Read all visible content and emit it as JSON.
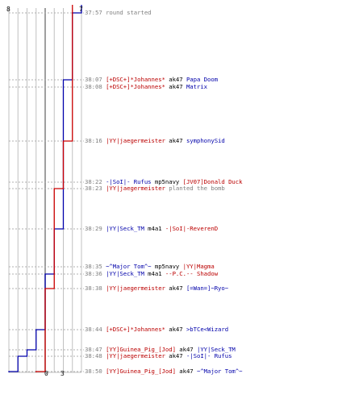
{
  "colors": {
    "team_a": "#0000aa",
    "team_b": "#cc0000",
    "grid": "#c0c0c0",
    "center_line": "#808080",
    "dashed": "#b0b0b0",
    "time": "#808080"
  },
  "scores": {
    "team_a_start": "8",
    "team_b_start": "7",
    "team_a_end": "0",
    "team_b_end": "3"
  },
  "chart_data": {
    "type": "line",
    "x_axis": "players alive",
    "series": [
      {
        "team": "team_a",
        "color": "#0000aa",
        "steps": [
          8,
          7,
          6,
          6,
          6,
          6,
          6,
          5,
          5,
          4,
          4,
          3,
          2,
          1,
          0
        ]
      },
      {
        "team": "team_b",
        "color": "#cc0000",
        "steps": [
          7,
          7,
          7,
          7,
          6,
          6,
          5,
          5,
          5,
          5,
          4,
          4,
          4,
          4,
          3
        ]
      }
    ]
  },
  "events": [
    {
      "time": "37:57",
      "parts": [
        {
          "text": "round started",
          "c": "gray"
        }
      ]
    },
    {
      "time": "38:07",
      "parts": [
        {
          "text": "[+DSC+]*Johannes*",
          "c": "red"
        },
        {
          "text": " ak47 ",
          "c": "black"
        },
        {
          "text": "Papa Doom",
          "c": "blue"
        }
      ]
    },
    {
      "time": "38:08",
      "parts": [
        {
          "text": "[+DSC+]*Johannes*",
          "c": "red"
        },
        {
          "text": " ak47 ",
          "c": "black"
        },
        {
          "text": "Matrix",
          "c": "blue"
        }
      ]
    },
    {
      "time": "38:16",
      "parts": [
        {
          "text": "|YY|jaegermeister",
          "c": "red"
        },
        {
          "text": " ak47 ",
          "c": "black"
        },
        {
          "text": "symphonySid",
          "c": "blue"
        }
      ]
    },
    {
      "time": "38:22",
      "parts": [
        {
          "text": "-|SoI|- Rufus",
          "c": "blue"
        },
        {
          "text": " mp5navy ",
          "c": "black"
        },
        {
          "text": "[JV07]Donald Duck",
          "c": "red"
        }
      ]
    },
    {
      "time": "38:23",
      "parts": [
        {
          "text": "|YY|jaegermeister",
          "c": "red"
        },
        {
          "text": " planted the bomb",
          "c": "gray"
        }
      ]
    },
    {
      "time": "38:29",
      "parts": [
        {
          "text": "|YY|Seck_TM",
          "c": "blue"
        },
        {
          "text": " m4a1 ",
          "c": "black"
        },
        {
          "text": "-|SoI|-ReverenD",
          "c": "red"
        }
      ]
    },
    {
      "time": "38:35",
      "parts": [
        {
          "text": "~^Major Tom^~",
          "c": "blue"
        },
        {
          "text": " mp5navy ",
          "c": "black"
        },
        {
          "text": "|YY|Magma",
          "c": "red"
        }
      ]
    },
    {
      "time": "38:36",
      "parts": [
        {
          "text": "|YY|Seck_TM",
          "c": "blue"
        },
        {
          "text": " m4a1 ",
          "c": "black"
        },
        {
          "text": "--P.C.-- Shadow",
          "c": "red"
        }
      ]
    },
    {
      "time": "38:38",
      "parts": [
        {
          "text": "|YY|jaegermeister",
          "c": "red"
        },
        {
          "text": " ak47 ",
          "c": "black"
        },
        {
          "text": "[=Wan=]~Ryo~",
          "c": "blue"
        }
      ]
    },
    {
      "time": "38:44",
      "parts": [
        {
          "text": "[+DSC+]*Johannes*",
          "c": "red"
        },
        {
          "text": " ak47 ",
          "c": "black"
        },
        {
          "text": ">bTCe<Wizard",
          "c": "blue"
        }
      ]
    },
    {
      "time": "38:47",
      "parts": [
        {
          "text": "[YY]Guinea_Pig_[Jod]",
          "c": "red"
        },
        {
          "text": " ak47 ",
          "c": "black"
        },
        {
          "text": "|YY|Seck_TM",
          "c": "blue"
        }
      ]
    },
    {
      "time": "38:48",
      "parts": [
        {
          "text": "|YY|jaegermeister",
          "c": "red"
        },
        {
          "text": " ak47 ",
          "c": "black"
        },
        {
          "text": "-|SoI|- Rufus",
          "c": "blue"
        }
      ]
    },
    {
      "time": "38:50",
      "parts": [
        {
          "text": "[YY]Guinea_Pig_[Jod]",
          "c": "red"
        },
        {
          "text": " ak47 ",
          "c": "black"
        },
        {
          "text": "~^Major Tom^~",
          "c": "blue"
        }
      ]
    }
  ]
}
